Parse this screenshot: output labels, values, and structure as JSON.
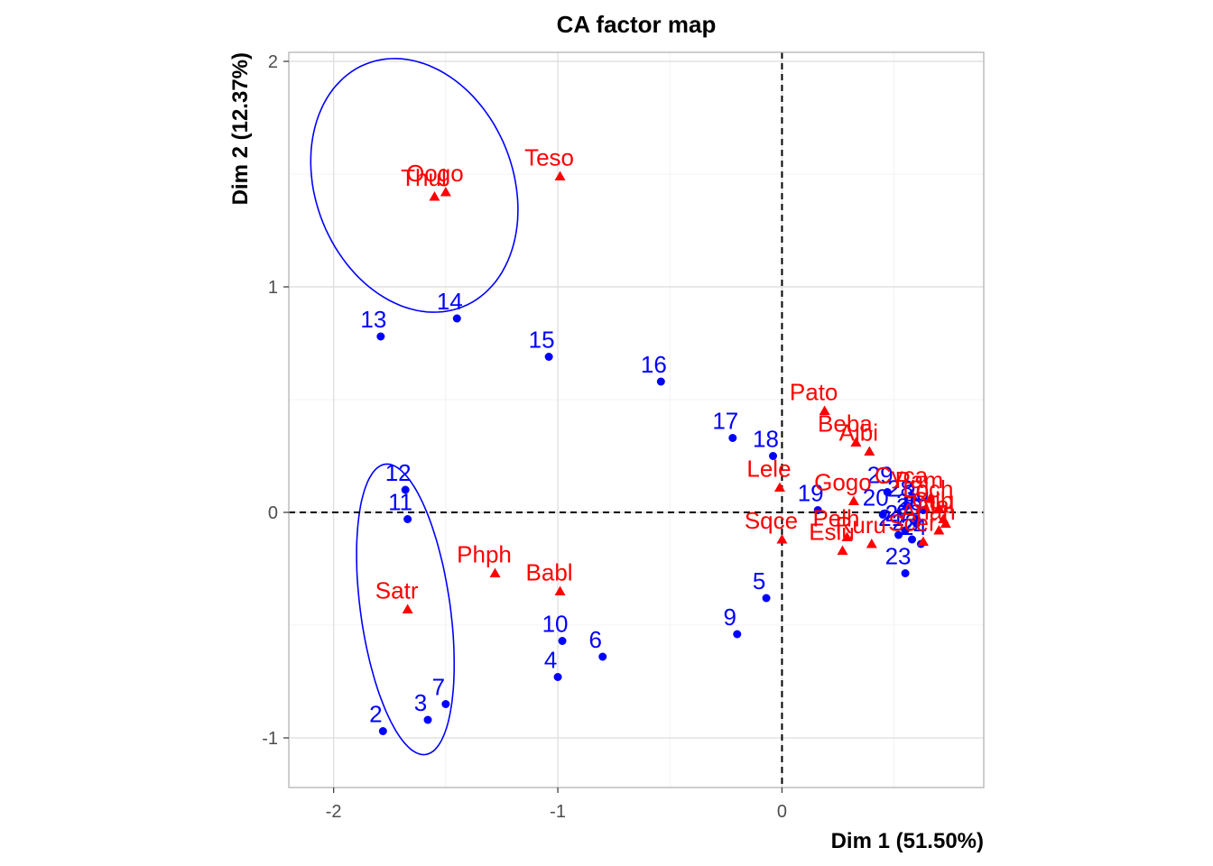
{
  "chart_data": {
    "type": "scatter",
    "title": "CA factor map",
    "xlabel": "Dim 1 (51.50%)",
    "ylabel": "Dim 2 (12.37%)",
    "xlim": [
      -2.2,
      0.9
    ],
    "ylim": [
      -1.22,
      2.04
    ],
    "xticks": [
      -2,
      -1,
      0
    ],
    "xtick_labels": [
      "-2",
      "-1",
      "0"
    ],
    "yticks": [
      -1,
      0,
      1,
      2
    ],
    "ytick_labels": [
      "-1",
      "0",
      "1",
      "2"
    ],
    "reference_lines": {
      "x": 0,
      "y": 0,
      "style": "dashed"
    },
    "grid": true,
    "colors": {
      "rows": "#0000ff",
      "cols": "#ff0000",
      "ellipse": "#0000ff"
    },
    "row_points": [
      {
        "label": "2",
        "x": -1.78,
        "y": -0.97
      },
      {
        "label": "3",
        "x": -1.58,
        "y": -0.92
      },
      {
        "label": "7",
        "x": -1.5,
        "y": -0.85
      },
      {
        "label": "4",
        "x": -1.0,
        "y": -0.73
      },
      {
        "label": "10",
        "x": -0.98,
        "y": -0.57
      },
      {
        "label": "6",
        "x": -0.8,
        "y": -0.64
      },
      {
        "label": "9",
        "x": -0.2,
        "y": -0.54
      },
      {
        "label": "5",
        "x": -0.07,
        "y": -0.38
      },
      {
        "label": "11",
        "x": -1.67,
        "y": -0.03
      },
      {
        "label": "12",
        "x": -1.68,
        "y": 0.1
      },
      {
        "label": "13",
        "x": -1.79,
        "y": 0.78
      },
      {
        "label": "14",
        "x": -1.45,
        "y": 0.86
      },
      {
        "label": "15",
        "x": -1.04,
        "y": 0.69
      },
      {
        "label": "16",
        "x": -0.54,
        "y": 0.58
      },
      {
        "label": "17",
        "x": -0.22,
        "y": 0.33
      },
      {
        "label": "18",
        "x": -0.04,
        "y": 0.25
      },
      {
        "label": "19",
        "x": 0.16,
        "y": 0.01
      },
      {
        "label": "20",
        "x": 0.45,
        "y": -0.01
      },
      {
        "label": "21",
        "x": 0.52,
        "y": -0.1
      },
      {
        "label": "22",
        "x": 0.58,
        "y": -0.12
      },
      {
        "label": "23",
        "x": 0.55,
        "y": -0.27
      },
      {
        "label": "24",
        "x": 0.62,
        "y": -0.14
      },
      {
        "label": "25",
        "x": 0.6,
        "y": -0.05
      },
      {
        "label": "26",
        "x": 0.6,
        "y": -0.03
      },
      {
        "label": "27",
        "x": 0.55,
        "y": -0.08
      },
      {
        "label": "28",
        "x": 0.56,
        "y": 0.03
      },
      {
        "label": "29",
        "x": 0.47,
        "y": 0.09
      },
      {
        "label": "30",
        "x": 0.63,
        "y": 0.01
      }
    ],
    "col_points": [
      {
        "label": "Oogo",
        "x": -1.5,
        "y": 1.42
      },
      {
        "label": "Thul",
        "x": -1.55,
        "y": 1.4
      },
      {
        "label": "Teso",
        "x": -0.99,
        "y": 1.49
      },
      {
        "label": "Satr",
        "x": -1.67,
        "y": -0.43
      },
      {
        "label": "Phph",
        "x": -1.28,
        "y": -0.27
      },
      {
        "label": "Babl",
        "x": -0.99,
        "y": -0.35
      },
      {
        "label": "Sqce",
        "x": 0.0,
        "y": -0.12
      },
      {
        "label": "Lele",
        "x": -0.01,
        "y": 0.11
      },
      {
        "label": "Pato",
        "x": 0.19,
        "y": 0.45
      },
      {
        "label": "Beba",
        "x": 0.33,
        "y": 0.31
      },
      {
        "label": "Albi",
        "x": 0.39,
        "y": 0.27
      },
      {
        "label": "Gogo",
        "x": 0.32,
        "y": 0.05
      },
      {
        "label": "Cyca",
        "x": 0.58,
        "y": 0.08
      },
      {
        "label": "Pam",
        "x": 0.66,
        "y": 0.06
      },
      {
        "label": "Loch",
        "x": 0.7,
        "y": 0.02
      },
      {
        "label": "Pelh",
        "x": 0.29,
        "y": -0.11
      },
      {
        "label": "Eslu",
        "x": 0.27,
        "y": -0.17
      },
      {
        "label": "Ruru",
        "x": 0.4,
        "y": -0.14
      },
      {
        "label": "Scer",
        "x": 0.63,
        "y": -0.13
      },
      {
        "label": "Anan",
        "x": 0.7,
        "y": -0.08
      },
      {
        "label": "Alal",
        "x": 0.73,
        "y": -0.05
      },
      {
        "label": "Ctlb",
        "x": 0.72,
        "y": -0.03
      }
    ],
    "ellipses": [
      {
        "cx": -1.64,
        "cy": 1.45,
        "rx": 0.44,
        "ry": 0.58,
        "angle_deg": 22
      },
      {
        "cx": -1.68,
        "cy": -0.43,
        "rx": 0.2,
        "ry": 0.65,
        "angle_deg": 8
      }
    ]
  }
}
